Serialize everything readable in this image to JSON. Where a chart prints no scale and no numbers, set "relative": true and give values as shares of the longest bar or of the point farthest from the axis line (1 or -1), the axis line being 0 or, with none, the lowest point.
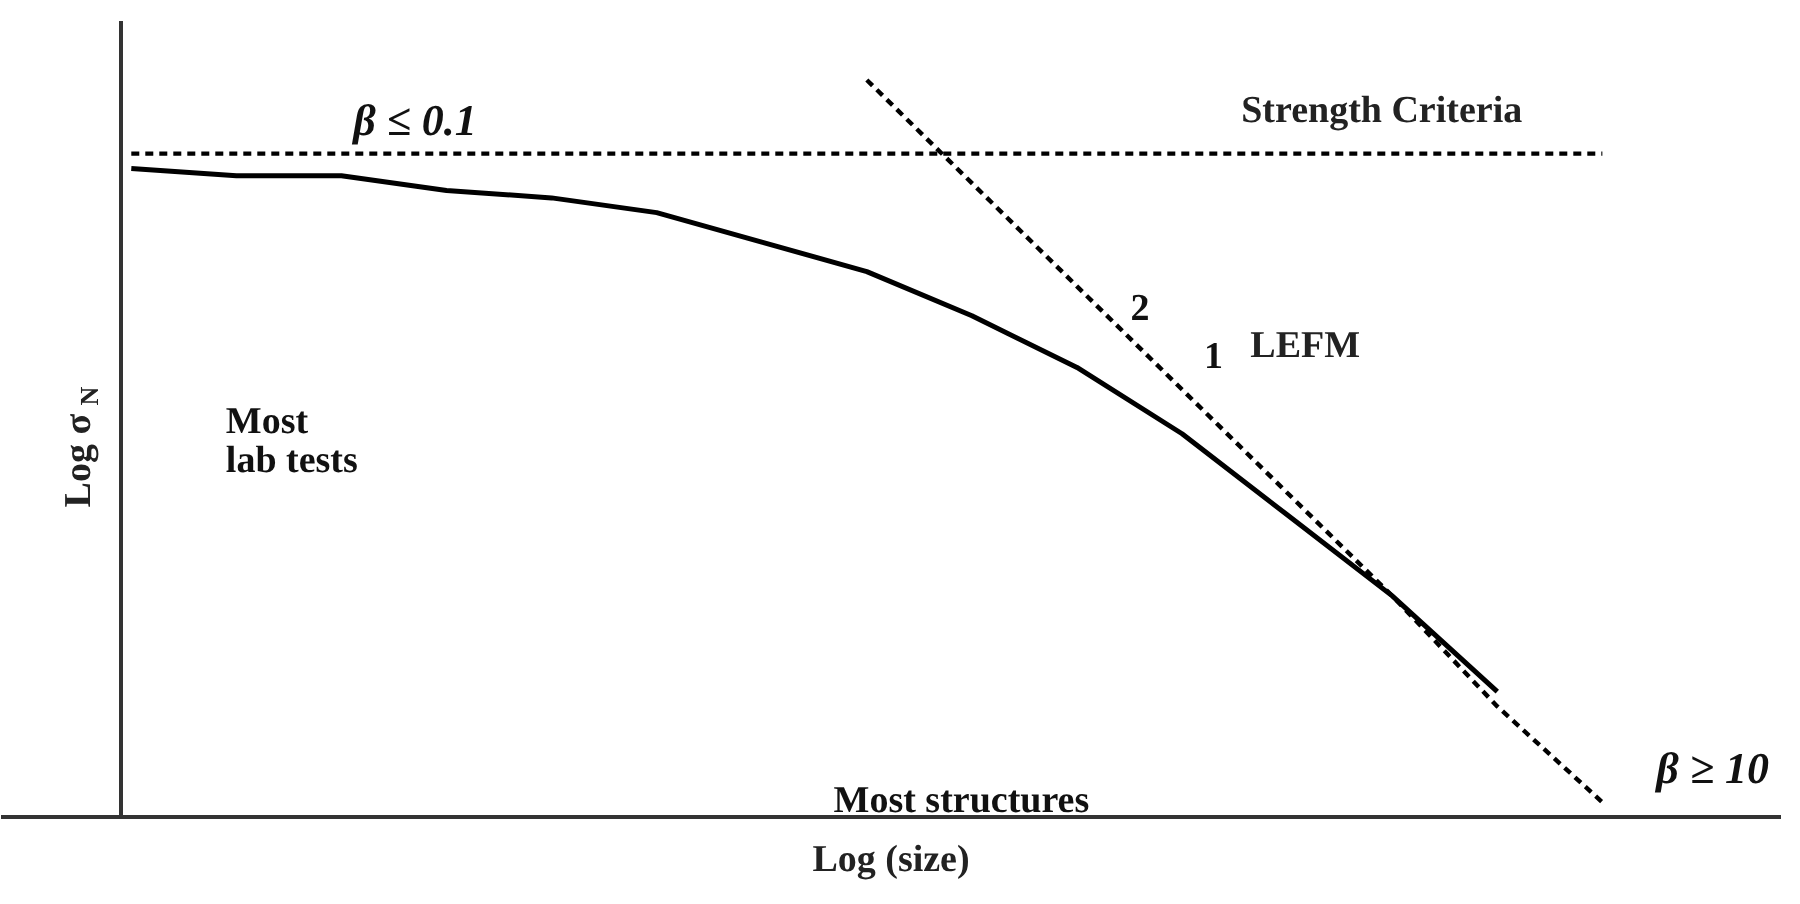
{
  "chart_data": {
    "type": "line",
    "relative": true,
    "xlabel": "Log (size)",
    "ylabel": "Log σ$_{N}$",
    "categories": [
      null,
      null,
      null,
      null,
      null,
      null,
      null,
      null,
      null,
      null,
      null,
      null,
      null,
      null,
      null
    ],
    "series": [
      {
        "color": "#000000",
        "line_style": "solid",
        "values": [
          0.88,
          0.87,
          0.87,
          0.85,
          0.84,
          0.82,
          0.78,
          0.74,
          0.68,
          0.61,
          0.52,
          0.41,
          0.3,
          0.17,
          null
        ]
      },
      {
        "name": "Strength Criteria",
        "color": "#000000",
        "line_style": "dashed",
        "values": [
          0.9,
          0.9,
          0.9,
          0.9,
          0.9,
          0.9,
          0.9,
          0.9,
          0.9,
          0.9,
          0.9,
          0.9,
          0.9,
          0.9,
          0.9
        ]
      },
      {
        "name": "LEFM",
        "color": "#000000",
        "line_style": "dashed",
        "values": [
          null,
          null,
          null,
          null,
          null,
          null,
          null,
          1.0,
          0.86,
          0.72,
          0.58,
          0.44,
          0.3,
          0.15,
          0.02
        ]
      }
    ],
    "annotations": [
      "β ≤ 0.1",
      "2",
      "1",
      "Most\nlab tests",
      "Most structures",
      "β ≥ 10"
    ],
    "grid": false,
    "legend": false,
    "tick_labels": false,
    "marker": "none"
  }
}
